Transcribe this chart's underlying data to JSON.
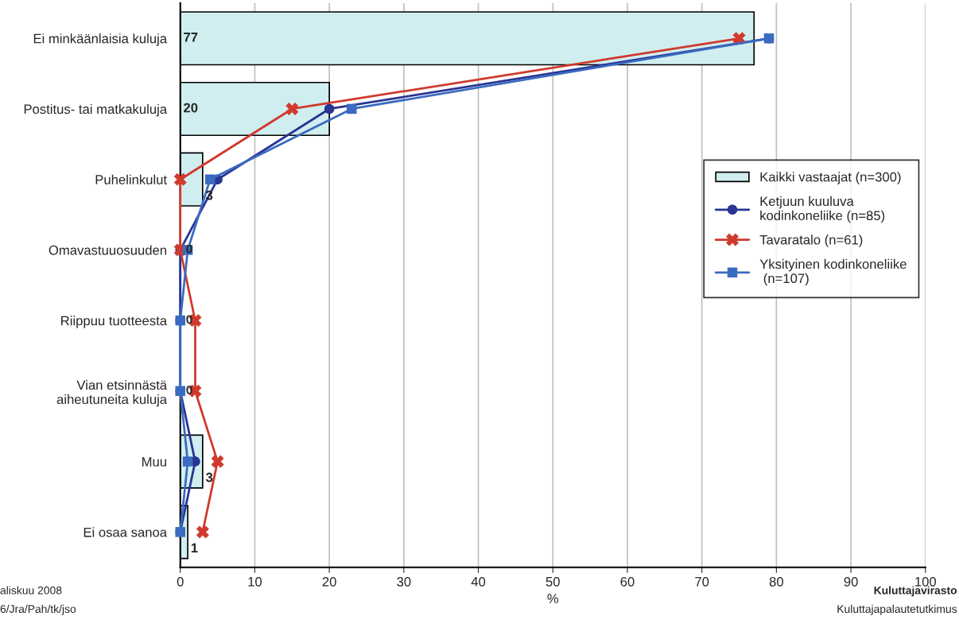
{
  "chart_data": {
    "type": "bar",
    "orientation": "horizontal",
    "xlabel": "%",
    "categories": [
      "Ei minkäänlaisia kuluja",
      "Postitus- tai matkakuluja",
      "Puhelinkulut",
      "Omavastuuosuuden",
      "Riippuu tuotteesta",
      "Vian etsinnästä\naiheutuneita kuluja",
      "Muu",
      "Ei osaa sanoa"
    ],
    "series": [
      {
        "name": "Kaikki vastaajat (n=300)",
        "color": "#d0eef0",
        "values": [
          77,
          20,
          3,
          0,
          0,
          0,
          3,
          1
        ],
        "value_labels": [
          "77",
          "20",
          "3",
          "0",
          "0",
          "0",
          "3",
          "1"
        ]
      },
      {
        "name": "Ketjuun kuuluva\nkodinkoneliike (n=85)",
        "type": "line",
        "marker": "circle",
        "color": "#283593",
        "values": [
          79,
          20,
          5,
          0,
          0,
          0,
          2,
          0
        ]
      },
      {
        "name": "Tavaratalo (n=61)",
        "type": "line",
        "marker": "cross",
        "color": "#d0392b",
        "values": [
          75,
          15,
          0,
          0,
          2,
          2,
          5,
          3
        ]
      },
      {
        "name": "Yksityinen kodinkoneliike\n (n=107)",
        "type": "line",
        "marker": "square",
        "color": "#3a6bc0",
        "values": [
          79,
          23,
          4,
          1,
          0,
          0,
          1,
          0
        ]
      }
    ],
    "xlim": [
      0,
      100
    ],
    "xticks": [
      0,
      10,
      20,
      30,
      40,
      50,
      60,
      70,
      80,
      90,
      100
    ],
    "grid": "x",
    "legend": "right",
    "annotations": [
      "aliskuu 2008",
      "6/Jra/Pah/tk/jso",
      "Kuluttajavirasto",
      "Kuluttajapalautetutkimus"
    ]
  }
}
